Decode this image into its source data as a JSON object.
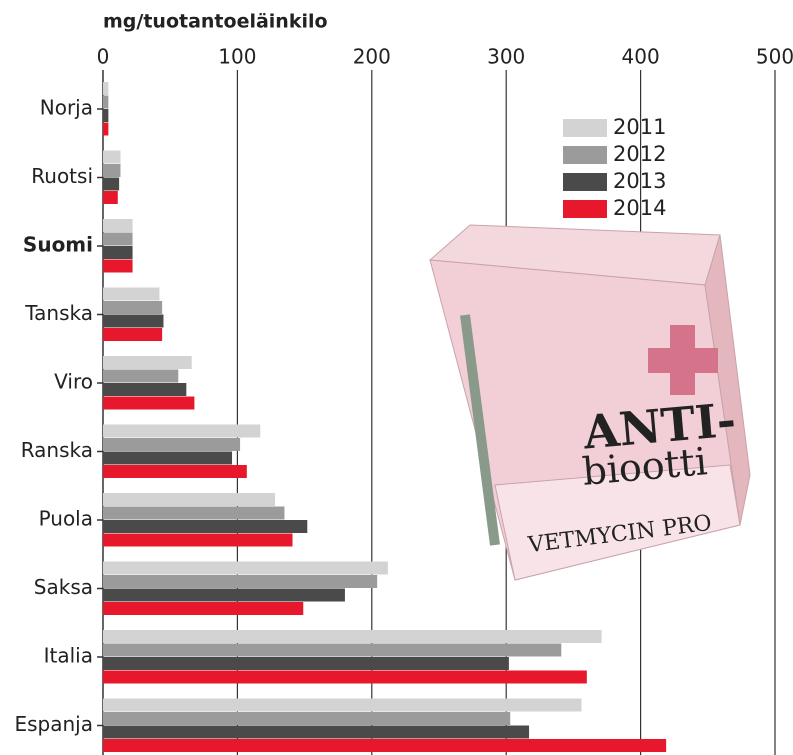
{
  "chart_data": {
    "type": "hbar",
    "x_axis_label": "mg/tuotantoeläinkilo",
    "categories": [
      "Norja",
      "Ruotsi",
      "Suomi",
      "Tanska",
      "Viro",
      "Ranska",
      "Puola",
      "Saksa",
      "Italia",
      "Espanja"
    ],
    "highlight_index": 2,
    "series": [
      {
        "name": "2011",
        "color": "#d3d3d3",
        "values": [
          4,
          13,
          22,
          42,
          66,
          117,
          128,
          212,
          371,
          356
        ]
      },
      {
        "name": "2012",
        "color": "#9b9b9b",
        "values": [
          4,
          13,
          22,
          44,
          56,
          102,
          135,
          204,
          341,
          303
        ]
      },
      {
        "name": "2013",
        "color": "#4a4a4a",
        "values": [
          4,
          12,
          22,
          45,
          62,
          96,
          152,
          180,
          302,
          317
        ]
      },
      {
        "name": "2014",
        "color": "#e8182c",
        "values": [
          4,
          11,
          22,
          44,
          68,
          107,
          141,
          149,
          360,
          419
        ]
      }
    ],
    "xlim": [
      0,
      500
    ],
    "xticks": [
      0,
      100,
      200,
      300,
      400,
      500
    ],
    "grid": true,
    "legend": "upper right"
  },
  "illustration": {
    "lines": [
      "ANTI-",
      "biootti",
      "VETMYCIN PRO"
    ]
  }
}
